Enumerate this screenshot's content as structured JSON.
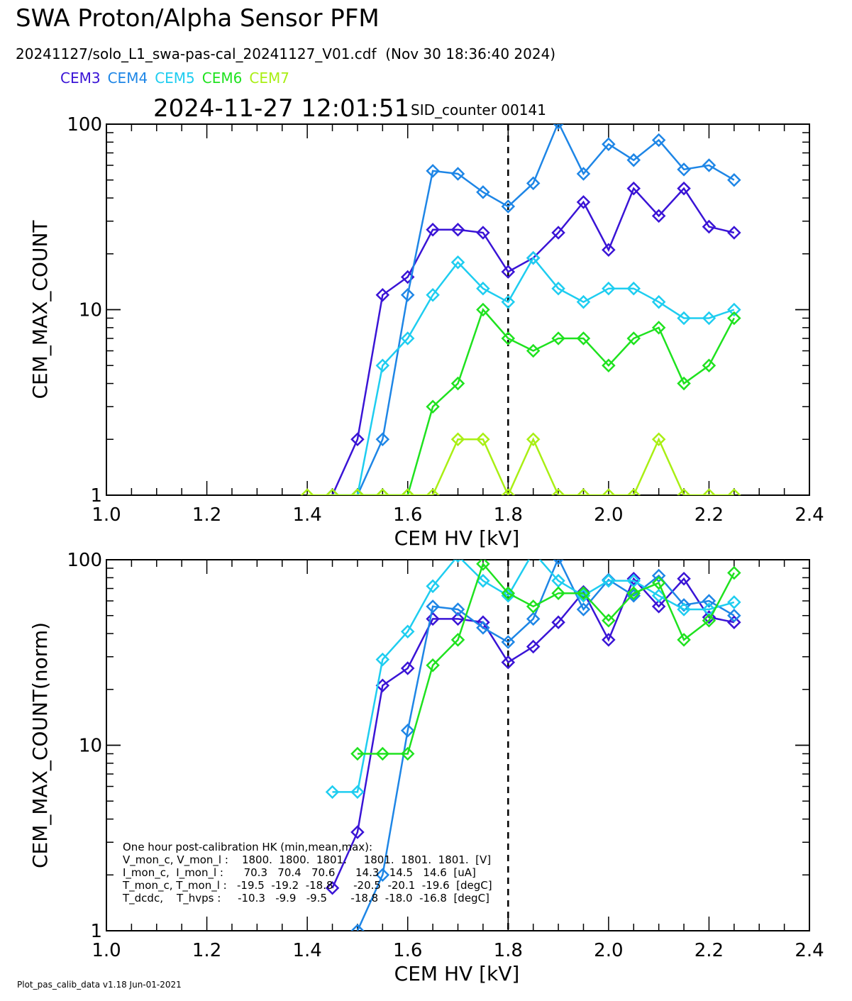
{
  "header": {
    "title": "SWA Proton/Alpha Sensor PFM",
    "subtitle": "20241127/solo_L1_swa-pas-cal_20241127_V01.cdf  (Nov 30 18:36:40 2024)",
    "timestamp": "2024-11-27 12:01:51",
    "sid": "SID_counter 00141"
  },
  "legend": [
    {
      "name": "CEM3",
      "color": "#3a14d6"
    },
    {
      "name": "CEM4",
      "color": "#1e86e6"
    },
    {
      "name": "CEM5",
      "color": "#1ecdf0"
    },
    {
      "name": "CEM6",
      "color": "#1fe21f"
    },
    {
      "name": "CEM7",
      "color": "#a9ef14"
    }
  ],
  "footer": "Plot_pas_calib_data v1.18 Jun-01-2021",
  "hk": {
    "title": "One hour post-calibration HK (min,mean,max):",
    "lines": [
      "V_mon_c, V_mon_l :    1800.  1800.  1801.     1801.  1801.  1801.  [V]",
      "I_mon_c,  I_mon_l :      70.3   70.4   70.6      14.3   14.5   14.6  [uA]",
      "T_mon_c, T_mon_l :   -19.5  -19.2  -18.8      -20.5  -20.1  -19.6  [degC]",
      "T_dcdc,    T_hvps :     -10.3   -9.9   -9.5       -18.8  -18.0  -16.8  [degC]"
    ]
  },
  "chart_data": [
    {
      "type": "line",
      "title": "",
      "xlabel": "CEM HV [kV]",
      "ylabel": "CEM_MAX_COUNT",
      "xlim": [
        1.0,
        2.4
      ],
      "ylim": [
        1,
        100
      ],
      "yscale": "log",
      "xticks": [
        "1.0",
        "1.2",
        "1.4",
        "1.6",
        "1.8",
        "2.0",
        "2.2",
        "2.4"
      ],
      "yticks": [
        "1",
        "10",
        "100"
      ],
      "vline_x": 1.8,
      "x": [
        1.4,
        1.45,
        1.5,
        1.55,
        1.6,
        1.65,
        1.7,
        1.75,
        1.8,
        1.85,
        1.9,
        1.95,
        2.0,
        2.05,
        2.1,
        2.15,
        2.2,
        2.25
      ],
      "series": [
        {
          "name": "CEM3",
          "color": "#3a14d6",
          "values": [
            null,
            1,
            2,
            12,
            15,
            27,
            27,
            26,
            16,
            19,
            26,
            38,
            21,
            45,
            32,
            45,
            28,
            26
          ]
        },
        {
          "name": "CEM4",
          "color": "#1e86e6",
          "values": [
            null,
            null,
            1,
            2,
            12,
            56,
            54,
            43,
            36,
            48,
            102,
            54,
            78,
            64,
            82,
            57,
            60,
            50
          ]
        },
        {
          "name": "CEM5",
          "color": "#1ecdf0",
          "values": [
            null,
            1,
            1,
            5,
            7,
            12,
            18,
            13,
            11,
            19,
            13,
            11,
            13,
            13,
            11,
            9,
            9,
            10
          ]
        },
        {
          "name": "CEM6",
          "color": "#1fe21f",
          "values": [
            null,
            null,
            1,
            1,
            1,
            3,
            4,
            10,
            7,
            6,
            7,
            7,
            5,
            7,
            8,
            4,
            5,
            9
          ]
        },
        {
          "name": "CEM7",
          "color": "#a9ef14",
          "values": [
            1,
            1,
            1,
            1,
            1,
            1,
            2,
            2,
            1,
            2,
            1,
            1,
            1,
            1,
            2,
            1,
            1,
            1
          ]
        }
      ]
    },
    {
      "type": "line",
      "title": "",
      "xlabel": "CEM HV [kV]",
      "ylabel": "CEM_MAX_COUNT(norm)",
      "xlim": [
        1.0,
        2.4
      ],
      "ylim": [
        1,
        100
      ],
      "yscale": "log",
      "xticks": [
        "1.0",
        "1.2",
        "1.4",
        "1.6",
        "1.8",
        "2.0",
        "2.2",
        "2.4"
      ],
      "yticks": [
        "1",
        "10",
        "100"
      ],
      "vline_x": 1.8,
      "x": [
        1.4,
        1.45,
        1.5,
        1.55,
        1.6,
        1.65,
        1.7,
        1.75,
        1.8,
        1.85,
        1.9,
        1.95,
        2.0,
        2.05,
        2.1,
        2.15,
        2.2,
        2.25
      ],
      "series": [
        {
          "name": "CEM3",
          "color": "#3a14d6",
          "values": [
            null,
            1.7,
            3.4,
            21,
            26,
            48,
            48,
            46,
            28,
            34,
            46,
            67,
            37,
            79,
            56,
            79,
            49,
            46
          ]
        },
        {
          "name": "CEM4",
          "color": "#1e86e6",
          "values": [
            null,
            null,
            1,
            2,
            12,
            56,
            54,
            43,
            36,
            48,
            102,
            54,
            78,
            64,
            82,
            57,
            60,
            50
          ]
        },
        {
          "name": "CEM5",
          "color": "#1ecdf0",
          "values": [
            null,
            5.6,
            5.6,
            29,
            41,
            72,
            105,
            77,
            64,
            110,
            77,
            64,
            77,
            77,
            64,
            54,
            54,
            59
          ]
        },
        {
          "name": "CEM6",
          "color": "#1fe21f",
          "values": [
            null,
            null,
            9,
            9,
            9,
            27,
            37,
            95,
            66,
            56,
            66,
            66,
            47,
            66,
            75,
            37,
            47,
            85
          ]
        }
      ]
    }
  ]
}
